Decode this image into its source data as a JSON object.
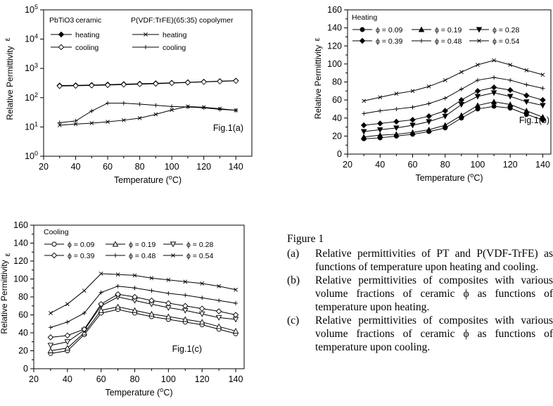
{
  "colors": {
    "ink": "#000000",
    "background": "#ffffff"
  },
  "chart_data": [
    {
      "id": "a",
      "type": "line",
      "log_y": true,
      "xlabel": "Temperature (°C)",
      "ylabel": "Relative Permittivity",
      "ylabel_short": "ε",
      "xlim": [
        20,
        150
      ],
      "ylim": [
        1,
        100000
      ],
      "xticks": [
        20,
        40,
        60,
        80,
        100,
        120,
        140
      ],
      "yticks": [
        1,
        10,
        100,
        1000,
        10000,
        100000
      ],
      "ytick_labels": [
        "10^0",
        "10^1",
        "10^2",
        "10^3",
        "10^4",
        "10^5"
      ],
      "annotation": "Fig.1(a)",
      "legend": {
        "group1_title": "PbTiO3 ceramic",
        "group2_title": "P(VDF:TrFE)(65:35) copolymer"
      },
      "series": [
        {
          "name": "heating",
          "group": 1,
          "marker": "diamond-filled",
          "x": [
            30,
            40,
            50,
            60,
            70,
            80,
            90,
            100,
            110,
            120,
            130,
            140
          ],
          "y": [
            260,
            265,
            270,
            280,
            290,
            300,
            310,
            320,
            335,
            350,
            365,
            380
          ]
        },
        {
          "name": "cooling",
          "group": 1,
          "marker": "diamond-open",
          "x": [
            30,
            40,
            50,
            60,
            70,
            80,
            90,
            100,
            110,
            120,
            130,
            140
          ],
          "y": [
            250,
            255,
            262,
            270,
            280,
            290,
            300,
            315,
            330,
            345,
            360,
            375
          ]
        },
        {
          "name": "heating",
          "group": 2,
          "marker": "x",
          "x": [
            30,
            40,
            50,
            60,
            70,
            80,
            90,
            100,
            110,
            120,
            130,
            140
          ],
          "y": [
            11.5,
            12.5,
            13.5,
            15,
            17,
            20,
            27,
            38,
            50,
            47,
            42,
            37
          ]
        },
        {
          "name": "cooling",
          "group": 2,
          "marker": "plus",
          "x": [
            30,
            40,
            50,
            60,
            70,
            80,
            90,
            100,
            110,
            120,
            130,
            140
          ],
          "y": [
            14,
            16,
            35,
            65,
            65,
            60,
            55,
            50,
            48,
            45,
            40,
            37
          ]
        }
      ]
    },
    {
      "id": "b",
      "type": "line",
      "xlabel": "Temperature (°C)",
      "ylabel": "Relative Permittivity",
      "ylabel_short": "ε",
      "xlim": [
        20,
        145
      ],
      "ylim": [
        0,
        160
      ],
      "xticks": [
        20,
        40,
        60,
        80,
        100,
        120,
        140
      ],
      "yticks": [
        0,
        20,
        40,
        60,
        80,
        100,
        120,
        140,
        160
      ],
      "annotation": "Fig.1(b)",
      "legend_title": "Heating",
      "series": [
        {
          "name": "ϕ = 0.09",
          "marker": "circle-filled",
          "x": [
            30,
            40,
            50,
            60,
            70,
            80,
            90,
            100,
            110,
            120,
            130,
            140
          ],
          "y": [
            17,
            18,
            20,
            22,
            25,
            29,
            40,
            50,
            53,
            51,
            44,
            38
          ]
        },
        {
          "name": "ϕ = 0.19",
          "marker": "triangle-filled",
          "x": [
            30,
            40,
            50,
            60,
            70,
            80,
            90,
            100,
            110,
            120,
            130,
            140
          ],
          "y": [
            19,
            21,
            22,
            24,
            27,
            32,
            43,
            54,
            58,
            55,
            48,
            41
          ]
        },
        {
          "name": "ϕ = 0.28",
          "marker": "triangle-down-filled",
          "x": [
            30,
            40,
            50,
            60,
            70,
            80,
            90,
            100,
            110,
            120,
            130,
            140
          ],
          "y": [
            25,
            27,
            29,
            32,
            36,
            42,
            55,
            64,
            68,
            64,
            58,
            54
          ]
        },
        {
          "name": "ϕ = 0.39",
          "marker": "diamond-filled",
          "x": [
            30,
            40,
            50,
            60,
            70,
            80,
            90,
            100,
            110,
            120,
            130,
            140
          ],
          "y": [
            32,
            34,
            36,
            38,
            42,
            48,
            60,
            70,
            74,
            71,
            65,
            60
          ]
        },
        {
          "name": "ϕ = 0.48",
          "marker": "plus",
          "x": [
            30,
            40,
            50,
            60,
            70,
            80,
            90,
            100,
            110,
            120,
            130,
            140
          ],
          "y": [
            45,
            48,
            50,
            52,
            56,
            62,
            72,
            82,
            85,
            82,
            77,
            73
          ]
        },
        {
          "name": "ϕ = 0.54",
          "marker": "x",
          "x": [
            30,
            40,
            50,
            60,
            70,
            80,
            90,
            100,
            110,
            120,
            130,
            140
          ],
          "y": [
            59,
            63,
            67,
            70,
            75,
            82,
            91,
            99,
            104,
            99,
            93,
            88
          ]
        }
      ]
    },
    {
      "id": "c",
      "type": "line",
      "xlabel": "Temperature (°C)",
      "ylabel": "Relative Permittivity",
      "ylabel_short": "ε",
      "xlim": [
        20,
        145
      ],
      "ylim": [
        0,
        160
      ],
      "xticks": [
        20,
        40,
        60,
        80,
        100,
        120,
        140
      ],
      "yticks": [
        0,
        20,
        40,
        60,
        80,
        100,
        120,
        140,
        160
      ],
      "annotation": "Fig.1(c)",
      "legend_title": "Cooling",
      "series": [
        {
          "name": "ϕ = 0.09",
          "marker": "circle-open",
          "x": [
            30,
            40,
            50,
            60,
            70,
            80,
            90,
            100,
            110,
            120,
            130,
            140
          ],
          "y": [
            17,
            20,
            38,
            62,
            66,
            62,
            58,
            55,
            52,
            49,
            44,
            39
          ]
        },
        {
          "name": "ϕ = 0.19",
          "marker": "triangle-open",
          "x": [
            30,
            40,
            50,
            60,
            70,
            80,
            90,
            100,
            110,
            120,
            130,
            140
          ],
          "y": [
            20,
            23,
            40,
            65,
            69,
            65,
            61,
            58,
            55,
            52,
            47,
            42
          ]
        },
        {
          "name": "ϕ = 0.28",
          "marker": "triangle-down-open",
          "x": [
            30,
            40,
            50,
            60,
            70,
            80,
            90,
            100,
            110,
            120,
            130,
            140
          ],
          "y": [
            26,
            30,
            43,
            70,
            80,
            76,
            72,
            68,
            65,
            61,
            57,
            55
          ]
        },
        {
          "name": "ϕ = 0.39",
          "marker": "diamond-open",
          "x": [
            30,
            40,
            50,
            60,
            70,
            80,
            90,
            100,
            110,
            120,
            130,
            140
          ],
          "y": [
            35,
            37,
            44,
            72,
            83,
            80,
            76,
            73,
            70,
            67,
            64,
            60
          ]
        },
        {
          "name": "ϕ = 0.48",
          "marker": "plus",
          "x": [
            30,
            40,
            50,
            60,
            70,
            80,
            90,
            100,
            110,
            120,
            130,
            140
          ],
          "y": [
            46,
            52,
            62,
            85,
            92,
            90,
            87,
            84,
            82,
            79,
            76,
            73
          ]
        },
        {
          "name": "ϕ = 0.54",
          "marker": "x",
          "x": [
            30,
            40,
            50,
            60,
            70,
            80,
            90,
            100,
            110,
            120,
            130,
            140
          ],
          "y": [
            62,
            72,
            87,
            106,
            105,
            104,
            101,
            99,
            97,
            95,
            92,
            88
          ]
        }
      ]
    }
  ],
  "caption": {
    "title": "Figure 1",
    "items": [
      {
        "label": "(a)",
        "text": "Relative permittivities of PT and P(VDF-TrFE) as functions of temperature upon heating and cooling."
      },
      {
        "label": "(b)",
        "text": "Relative permittivities of composites with various volume fractions of ceramic ϕ as functions of temperature upon heating."
      },
      {
        "label": "(c)",
        "text": "Relative permittivities of composites with various volume fractions of ceramic ϕ as functions of temperature upon cooling."
      }
    ]
  }
}
